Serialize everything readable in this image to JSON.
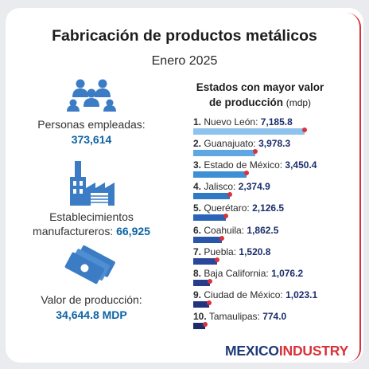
{
  "header": {
    "title": "Fabricación de productos metálicos",
    "subtitle": "Enero 2025"
  },
  "stats": {
    "persons_label": "Personas empleadas:",
    "persons_value": "373,614",
    "establishments_label_1": "Establecimientos",
    "establishments_label_2": "manufactureros:",
    "establishments_value": "66,925",
    "production_label": "Valor de producción:",
    "production_value": "34,644.8 MDP"
  },
  "icons": [
    "people-icon",
    "factory-icon",
    "money-bills-icon"
  ],
  "colors": {
    "accent_red": "#d8323a",
    "value_blue": "#0d63a5",
    "logo_navy": "#1e3a7a"
  },
  "chart_data": {
    "type": "bar",
    "title": "Estados con mayor valor de producción",
    "title_line1": "Estados con mayor valor",
    "title_line2": "de producción",
    "unit": "(mdp)",
    "categories": [
      "Nuevo León",
      "Guanajuato",
      "Estado de México",
      "Jalisco",
      "Querétaro",
      "Coahuila",
      "Puebla",
      "Baja California",
      "Ciudad de México",
      "Tamaulipas"
    ],
    "ranks": [
      "1.",
      "2.",
      "3.",
      "4.",
      "5.",
      "6.",
      "7.",
      "8.",
      "9.",
      "10."
    ],
    "values": [
      7185.8,
      3978.3,
      3450.4,
      2374.9,
      2126.5,
      1862.5,
      1520.8,
      1076.2,
      1023.1,
      774.0
    ],
    "value_labels": [
      "7,185.8",
      "3,978.3",
      "3,450.4",
      "2,374.9",
      "2,126.5",
      "1,862.5",
      "1,520.8",
      "1,076.2",
      "1,023.1",
      "774.0"
    ],
    "bar_colors": [
      "#8fc3ee",
      "#5ea7e3",
      "#3f8fd6",
      "#3079c7",
      "#2a63b7",
      "#2a55a8",
      "#28479a",
      "#253d8a",
      "#22357c",
      "#1d2c6b"
    ]
  },
  "logo": {
    "part1": "MEXICO",
    "part2": "INDUSTRY"
  }
}
